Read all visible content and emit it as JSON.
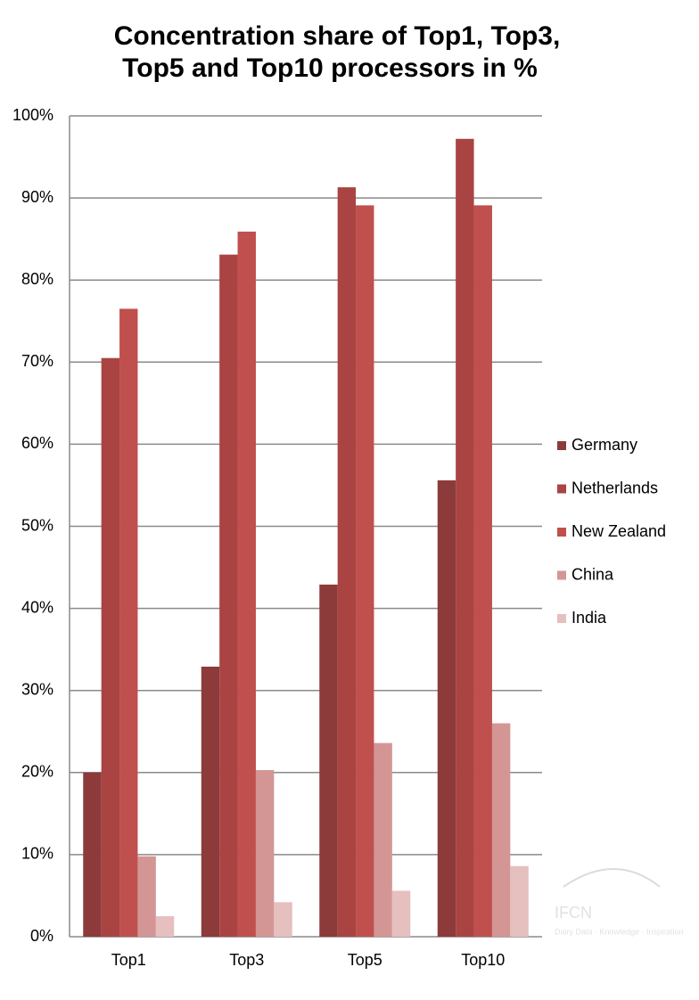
{
  "chart_data": {
    "type": "bar",
    "title": [
      "Concentration share of  Top1, Top3,",
      "Top5 and Top10 processors in %"
    ],
    "categories": [
      "Top1",
      "Top3",
      "Top5",
      "Top10"
    ],
    "series": [
      {
        "name": "Germany",
        "color": "#8c3b3a",
        "values": [
          20.0,
          32.9,
          42.9,
          55.6
        ]
      },
      {
        "name": "Netherlands",
        "color": "#a94442",
        "values": [
          70.5,
          83.1,
          91.3,
          97.2
        ]
      },
      {
        "name": "New Zealand",
        "color": "#c0504d",
        "values": [
          76.5,
          85.9,
          89.1,
          89.1
        ]
      },
      {
        "name": "China",
        "color": "#d39695",
        "values": [
          9.8,
          20.3,
          23.6,
          26.0
        ]
      },
      {
        "name": "India",
        "color": "#e6bfbf",
        "values": [
          2.5,
          4.2,
          5.6,
          8.6
        ]
      }
    ],
    "ylim": [
      0,
      100
    ],
    "yticks": [
      {
        "value": 0,
        "label": "0%"
      },
      {
        "value": 10,
        "label": "10%"
      },
      {
        "value": 20,
        "label": "20%"
      },
      {
        "value": 30,
        "label": "30%"
      },
      {
        "value": 40,
        "label": "40%"
      },
      {
        "value": 50,
        "label": "50%"
      },
      {
        "value": 60,
        "label": "60%"
      },
      {
        "value": 70,
        "label": "70%"
      },
      {
        "value": 80,
        "label": "80%"
      },
      {
        "value": 90,
        "label": "90%"
      },
      {
        "value": 100,
        "label": "100%"
      }
    ],
    "grid": true,
    "legend": "right",
    "watermark": [
      "IFCN",
      "Dairy Data · Knowledge · Inspiration"
    ]
  }
}
